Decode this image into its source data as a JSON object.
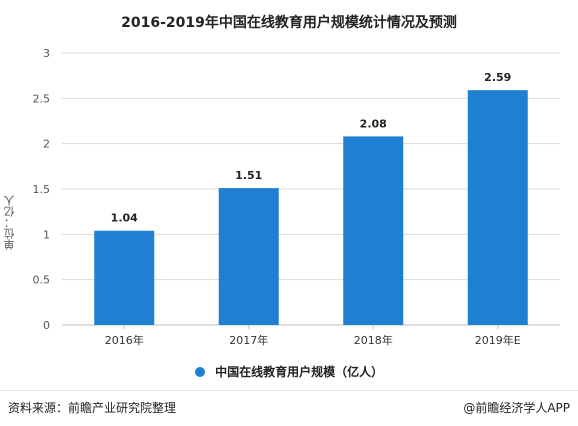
{
  "title": "2016-2019年中国在线教育用户规模统计情况及预测",
  "footer": {
    "source": "资料来源：前瞻产业研究院整理",
    "brand": "@前瞻经济学人APP"
  },
  "chart_data": {
    "type": "bar",
    "categories": [
      "2016年",
      "2017年",
      "2018年",
      "2019年E"
    ],
    "series": [
      {
        "name": "中国在线教育用户规模（亿人）",
        "values": [
          1.04,
          1.51,
          2.08,
          2.59
        ]
      }
    ],
    "data_labels": [
      "1.04",
      "1.51",
      "2.08",
      "2.59"
    ],
    "ylabel": "单位：亿人",
    "xlabel": "",
    "ylim": [
      0,
      3
    ],
    "yticks": [
      0,
      0.5,
      1,
      1.5,
      2,
      2.5,
      3
    ],
    "ytick_labels": [
      "0",
      "0.5",
      "1",
      "1.5",
      "2",
      "2.5",
      "3"
    ],
    "grid": true,
    "legend_position": "bottom",
    "colors": {
      "bar": "#1f7fd0",
      "grid": "#d9d9d9",
      "axis": "#bfbfbf"
    }
  }
}
